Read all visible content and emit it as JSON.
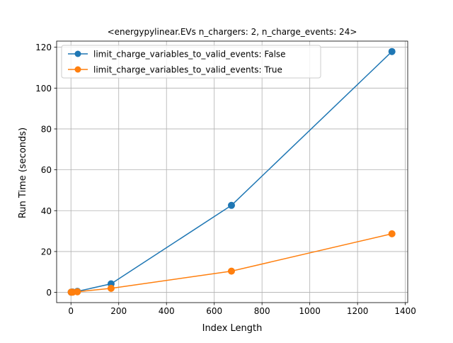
{
  "chart_data": {
    "type": "line",
    "title": "<energypylinear.EVs n_chargers: 2, n_charge_events: 24>",
    "xlabel": "Index Length",
    "ylabel": "Run Time (seconds)",
    "xlim": [
      -60,
      1410
    ],
    "ylim": [
      -5,
      123
    ],
    "xticks": [
      0,
      200,
      400,
      600,
      800,
      1000,
      1200,
      1400
    ],
    "yticks": [
      0,
      20,
      40,
      60,
      80,
      100,
      120
    ],
    "grid": true,
    "legend_position": "upper-left",
    "series": [
      {
        "name": "limit_charge_variables_to_valid_events: False",
        "color": "#1f77b4",
        "marker": "circle",
        "x": [
          1,
          7,
          27,
          168,
          672,
          1344
        ],
        "y": [
          0.1,
          0.2,
          0.5,
          4.2,
          42.6,
          117.9
        ]
      },
      {
        "name": "limit_charge_variables_to_valid_events: True",
        "color": "#ff7f0e",
        "marker": "circle",
        "x": [
          1,
          7,
          27,
          168,
          672,
          1344
        ],
        "y": [
          0.1,
          0.1,
          0.3,
          2.0,
          10.4,
          28.7
        ]
      }
    ]
  }
}
